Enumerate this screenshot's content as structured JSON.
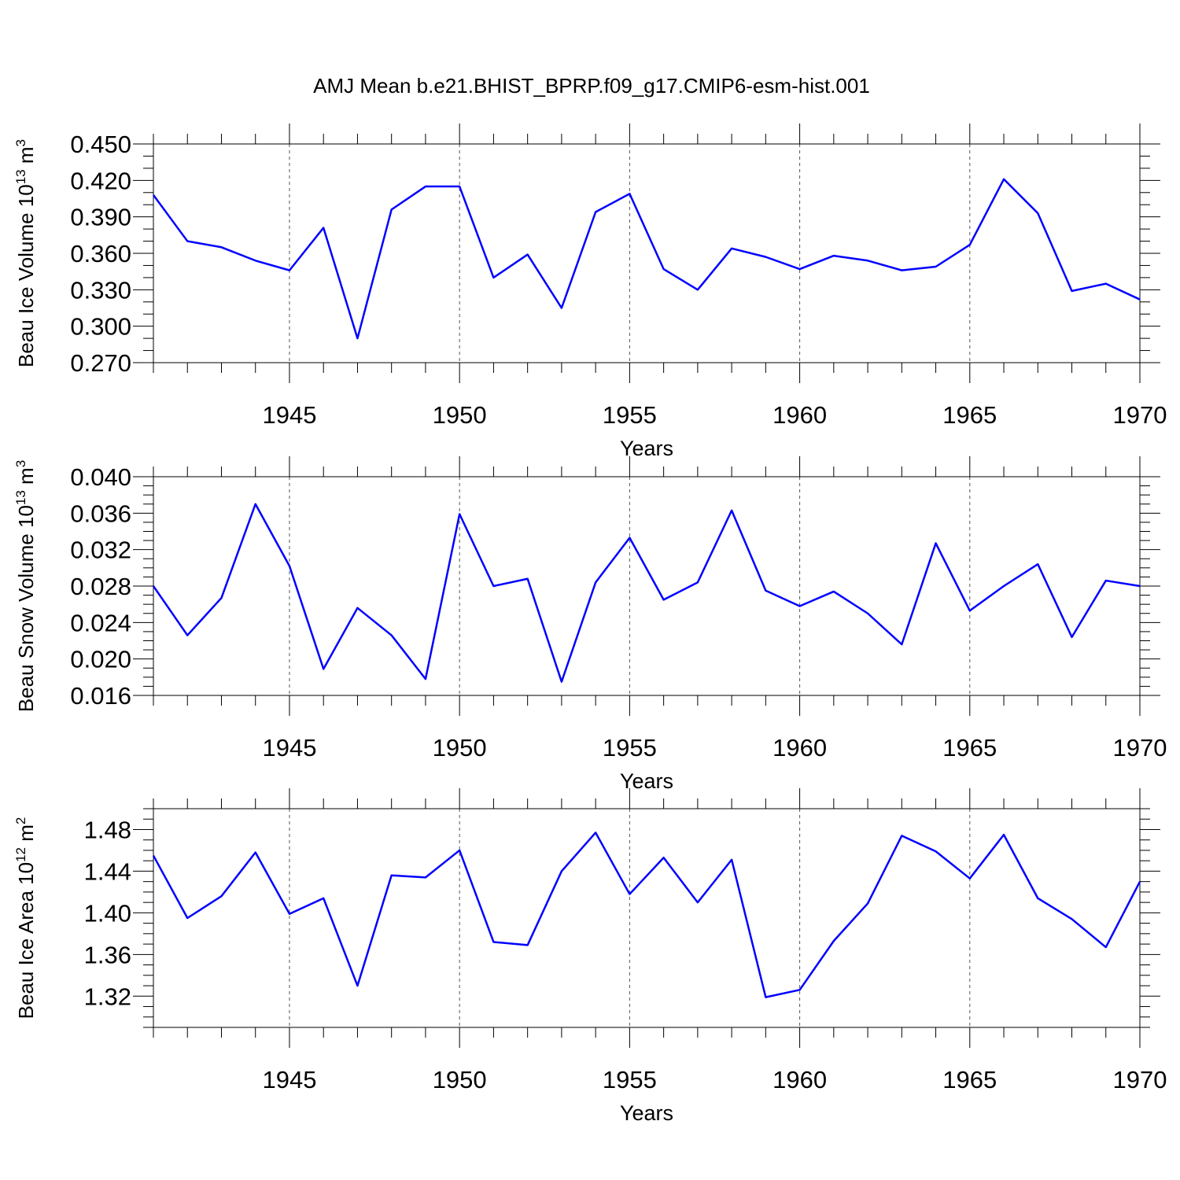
{
  "title": "AMJ Mean b.e21.BHIST_BPRP.f09_g17.CMIP6-esm-hist.001",
  "colors": {
    "series": "#0000ff",
    "axis": "#000000",
    "grid": "#555555"
  },
  "chart_data": [
    {
      "type": "line",
      "ylabel_main": "Beau Ice Volume 10",
      "ylabel_sup1": "13",
      "ylabel_mid": " m",
      "ylabel_sup2": "3",
      "xlabel": "Years",
      "xlim": [
        1941,
        1970
      ],
      "ylim": [
        0.27,
        0.45
      ],
      "yticks": [
        0.27,
        0.3,
        0.33,
        0.36,
        0.39,
        0.42,
        0.45
      ],
      "ytick_labels": [
        "0.270",
        "0.300",
        "0.330",
        "0.360",
        "0.390",
        "0.420",
        "0.450"
      ],
      "yminor_step": 0.01,
      "xticks": [
        1945,
        1950,
        1955,
        1960,
        1965,
        1970
      ],
      "xtick_labels": [
        "1945",
        "1950",
        "1955",
        "1960",
        "1965",
        "1970"
      ],
      "grid": "vertical dashed at major x ticks",
      "x": [
        1941,
        1942,
        1943,
        1944,
        1945,
        1946,
        1947,
        1948,
        1949,
        1950,
        1951,
        1952,
        1953,
        1954,
        1955,
        1956,
        1957,
        1958,
        1959,
        1960,
        1961,
        1962,
        1963,
        1964,
        1965,
        1966,
        1967,
        1968,
        1969,
        1970
      ],
      "y": [
        0.408,
        0.37,
        0.365,
        0.354,
        0.346,
        0.381,
        0.29,
        0.396,
        0.415,
        0.415,
        0.34,
        0.359,
        0.315,
        0.394,
        0.409,
        0.347,
        0.33,
        0.364,
        0.357,
        0.347,
        0.358,
        0.354,
        0.346,
        0.349,
        0.367,
        0.421,
        0.393,
        0.329,
        0.335,
        0.322
      ]
    },
    {
      "type": "line",
      "ylabel_main": "Beau Snow Volume 10",
      "ylabel_sup1": "13",
      "ylabel_mid": " m",
      "ylabel_sup2": "3",
      "xlabel": "Years",
      "xlim": [
        1941,
        1970
      ],
      "ylim": [
        0.016,
        0.04
      ],
      "yticks": [
        0.016,
        0.02,
        0.024,
        0.028,
        0.032,
        0.036,
        0.04
      ],
      "ytick_labels": [
        "0.016",
        "0.020",
        "0.024",
        "0.028",
        "0.032",
        "0.036",
        "0.040"
      ],
      "yminor_step": 0.001,
      "xticks": [
        1945,
        1950,
        1955,
        1960,
        1965,
        1970
      ],
      "xtick_labels": [
        "1945",
        "1950",
        "1955",
        "1960",
        "1965",
        "1970"
      ],
      "grid": "vertical dashed at major x ticks",
      "x": [
        1941,
        1942,
        1943,
        1944,
        1945,
        1946,
        1947,
        1948,
        1949,
        1950,
        1951,
        1952,
        1953,
        1954,
        1955,
        1956,
        1957,
        1958,
        1959,
        1960,
        1961,
        1962,
        1963,
        1964,
        1965,
        1966,
        1967,
        1968,
        1969,
        1970
      ],
      "y": [
        0.028,
        0.0226,
        0.0267,
        0.037,
        0.0302,
        0.0189,
        0.0256,
        0.0226,
        0.0178,
        0.0359,
        0.028,
        0.0288,
        0.0175,
        0.0284,
        0.0333,
        0.0265,
        0.0284,
        0.0363,
        0.0275,
        0.0258,
        0.0274,
        0.025,
        0.0216,
        0.0327,
        0.0253,
        0.028,
        0.0304,
        0.0224,
        0.0286,
        0.028
      ]
    },
    {
      "type": "line",
      "ylabel_main": "Beau Ice Area 10",
      "ylabel_sup1": "12",
      "ylabel_mid": " m",
      "ylabel_sup2": "2",
      "xlabel": "Years",
      "xlim": [
        1941,
        1970
      ],
      "ylim": [
        1.29,
        1.5
      ],
      "yticks": [
        1.32,
        1.36,
        1.4,
        1.44,
        1.48
      ],
      "ytick_labels": [
        "1.32",
        "1.36",
        "1.40",
        "1.44",
        "1.48"
      ],
      "yminor_step": 0.01,
      "xticks": [
        1945,
        1950,
        1955,
        1960,
        1965,
        1970
      ],
      "xtick_labels": [
        "1945",
        "1950",
        "1955",
        "1960",
        "1965",
        "1970"
      ],
      "grid": "vertical dashed at major x ticks",
      "x": [
        1941,
        1942,
        1943,
        1944,
        1945,
        1946,
        1947,
        1948,
        1949,
        1950,
        1951,
        1952,
        1953,
        1954,
        1955,
        1956,
        1957,
        1958,
        1959,
        1960,
        1961,
        1962,
        1963,
        1964,
        1965,
        1966,
        1967,
        1968,
        1969,
        1970
      ],
      "y": [
        1.455,
        1.395,
        1.416,
        1.458,
        1.399,
        1.414,
        1.33,
        1.436,
        1.434,
        1.46,
        1.372,
        1.369,
        1.44,
        1.477,
        1.418,
        1.453,
        1.41,
        1.451,
        1.319,
        1.326,
        1.373,
        1.409,
        1.474,
        1.459,
        1.433,
        1.475,
        1.414,
        1.394,
        1.367,
        1.43
      ]
    }
  ]
}
